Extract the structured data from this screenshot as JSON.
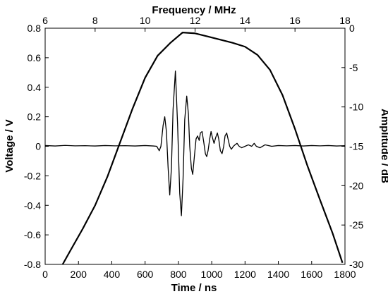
{
  "chart_data": {
    "type": "line",
    "title": "",
    "grid": false,
    "legend": "none",
    "axes": {
      "bottom": {
        "label": "Time / ns",
        "range": [
          0,
          1800
        ],
        "ticks": [
          0,
          200,
          400,
          600,
          800,
          1000,
          1200,
          1400,
          1600,
          1800
        ],
        "tick_labels": [
          "0",
          "200",
          "400",
          "600",
          "800",
          "1000",
          "1200",
          "1400",
          "1600",
          "1800"
        ]
      },
      "left": {
        "label": "Voltage / V",
        "range": [
          -0.8,
          0.8
        ],
        "ticks": [
          -0.8,
          -0.6,
          -0.4,
          -0.2,
          0,
          0.2,
          0.4,
          0.6,
          0.8
        ],
        "tick_labels": [
          "-0.8",
          "-0.6",
          "-0.4",
          "-0.2",
          "0",
          "0.2",
          "0.4",
          "0.6",
          "0.8"
        ]
      },
      "top": {
        "label": "Frequency / MHz",
        "range": [
          6,
          18
        ],
        "ticks": [
          6,
          8,
          10,
          12,
          14,
          16,
          18
        ],
        "tick_labels": [
          "6",
          "8",
          "10",
          "12",
          "14",
          "16",
          "18"
        ]
      },
      "right": {
        "label": "Amplitude / dB",
        "range": [
          -30,
          0
        ],
        "ticks": [
          -30,
          -25,
          -20,
          -15,
          -10,
          -5,
          0
        ],
        "tick_labels": [
          "-30",
          "-25",
          "-20",
          "-15",
          "-10",
          "-5",
          "0"
        ]
      }
    },
    "series": [
      {
        "axes": "bottom-left",
        "x_unit": "ns",
        "y_unit": "V",
        "color": "#000000",
        "points": [
          [
            0,
            0.005
          ],
          [
            60,
            0.002
          ],
          [
            120,
            0.006
          ],
          [
            180,
            0.003
          ],
          [
            240,
            0.004
          ],
          [
            300,
            0.002
          ],
          [
            360,
            0.005
          ],
          [
            420,
            0.003
          ],
          [
            480,
            0.004
          ],
          [
            540,
            0.002
          ],
          [
            600,
            0.005
          ],
          [
            650,
            0.002
          ],
          [
            670,
            0.0
          ],
          [
            685,
            -0.03
          ],
          [
            695,
            0.0
          ],
          [
            708,
            0.14
          ],
          [
            718,
            0.2
          ],
          [
            728,
            0.1
          ],
          [
            738,
            -0.14
          ],
          [
            748,
            -0.33
          ],
          [
            758,
            -0.15
          ],
          [
            768,
            0.25
          ],
          [
            782,
            0.51
          ],
          [
            795,
            0.15
          ],
          [
            808,
            -0.32
          ],
          [
            818,
            -0.47
          ],
          [
            828,
            -0.22
          ],
          [
            838,
            0.18
          ],
          [
            850,
            0.34
          ],
          [
            860,
            0.22
          ],
          [
            868,
            0.0
          ],
          [
            878,
            -0.15
          ],
          [
            886,
            -0.19
          ],
          [
            895,
            -0.08
          ],
          [
            906,
            0.05
          ],
          [
            915,
            0.07
          ],
          [
            925,
            0.04
          ],
          [
            932,
            0.09
          ],
          [
            942,
            0.1
          ],
          [
            952,
            0.03
          ],
          [
            962,
            -0.05
          ],
          [
            970,
            -0.07
          ],
          [
            978,
            -0.03
          ],
          [
            988,
            0.05
          ],
          [
            996,
            0.1
          ],
          [
            1004,
            0.06
          ],
          [
            1014,
            0.02
          ],
          [
            1024,
            0.06
          ],
          [
            1034,
            0.09
          ],
          [
            1042,
            0.05
          ],
          [
            1052,
            -0.03
          ],
          [
            1062,
            -0.05
          ],
          [
            1072,
            0.0
          ],
          [
            1080,
            0.07
          ],
          [
            1090,
            0.09
          ],
          [
            1098,
            0.05
          ],
          [
            1108,
            0.0
          ],
          [
            1118,
            -0.02
          ],
          [
            1130,
            0.0
          ],
          [
            1140,
            0.01
          ],
          [
            1152,
            0.02
          ],
          [
            1165,
            0.0
          ],
          [
            1180,
            -0.01
          ],
          [
            1200,
            0.0
          ],
          [
            1220,
            0.01
          ],
          [
            1240,
            0.0
          ],
          [
            1255,
            0.02
          ],
          [
            1268,
            0.0
          ],
          [
            1290,
            -0.01
          ],
          [
            1320,
            0.01
          ],
          [
            1360,
            0.0
          ],
          [
            1400,
            0.005
          ],
          [
            1450,
            0.003
          ],
          [
            1500,
            0.005
          ],
          [
            1550,
            0.002
          ],
          [
            1600,
            0.005
          ],
          [
            1650,
            0.003
          ],
          [
            1700,
            0.005
          ],
          [
            1750,
            0.002
          ],
          [
            1800,
            0.004
          ]
        ]
      },
      {
        "axes": "top-right",
        "x_unit": "MHz",
        "y_unit": "dB",
        "color": "#000000",
        "points": [
          [
            6.7,
            -30
          ],
          [
            7.0,
            -28.3
          ],
          [
            7.5,
            -25.5
          ],
          [
            8.0,
            -22.5
          ],
          [
            8.5,
            -18.8
          ],
          [
            9.0,
            -14.5
          ],
          [
            9.5,
            -10.2
          ],
          [
            10.0,
            -6.3
          ],
          [
            10.5,
            -3.5
          ],
          [
            11.0,
            -1.9
          ],
          [
            11.5,
            -0.55
          ],
          [
            12.0,
            -0.65
          ],
          [
            12.5,
            -1.05
          ],
          [
            13.0,
            -1.45
          ],
          [
            13.5,
            -1.85
          ],
          [
            14.0,
            -2.35
          ],
          [
            14.5,
            -3.4
          ],
          [
            15.0,
            -5.3
          ],
          [
            15.5,
            -8.5
          ],
          [
            16.0,
            -12.8
          ],
          [
            16.5,
            -17.5
          ],
          [
            17.0,
            -21.8
          ],
          [
            17.5,
            -26.0
          ],
          [
            17.9,
            -29.8
          ]
        ]
      }
    ]
  }
}
